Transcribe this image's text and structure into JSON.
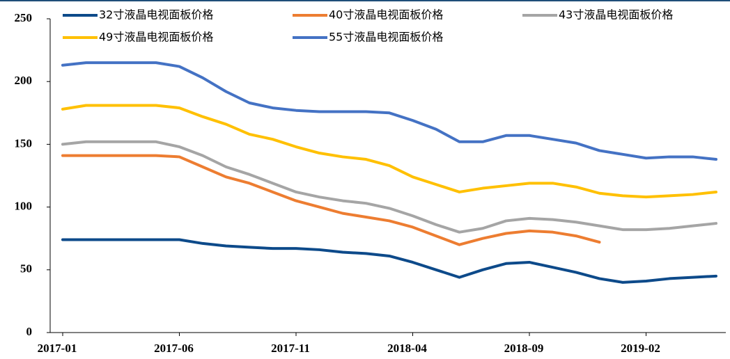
{
  "chart_data": {
    "type": "line",
    "categories": [
      "2017-01",
      null,
      null,
      null,
      null,
      "2017-06",
      null,
      null,
      null,
      null,
      "2017-11",
      null,
      null,
      null,
      null,
      "2018-04",
      null,
      null,
      null,
      null,
      "2018-09",
      null,
      null,
      null,
      null,
      "2019-02",
      null,
      null,
      null
    ],
    "series": [
      {
        "name": "32寸液晶电视面板价格",
        "color": "#0d4a8a",
        "values": [
          74,
          74,
          74,
          74,
          74,
          74,
          71,
          69,
          68,
          67,
          67,
          66,
          64,
          63,
          61,
          56,
          50,
          44,
          50,
          55,
          56,
          52,
          48,
          43,
          40,
          41,
          43,
          44,
          45
        ]
      },
      {
        "name": "40寸液晶电视面板价格",
        "color": "#ed7d31",
        "values": [
          141,
          141,
          141,
          141,
          141,
          140,
          132,
          124,
          119,
          112,
          105,
          100,
          95,
          92,
          89,
          84,
          77,
          70,
          75,
          79,
          81,
          80,
          77,
          72,
          null,
          null,
          null,
          null,
          null
        ]
      },
      {
        "name": "43寸液晶电视面板价格",
        "color": "#a5a5a5",
        "values": [
          150,
          152,
          152,
          152,
          152,
          148,
          141,
          132,
          126,
          119,
          112,
          108,
          105,
          103,
          99,
          93,
          86,
          80,
          83,
          89,
          91,
          90,
          88,
          85,
          82,
          82,
          83,
          85,
          87
        ]
      },
      {
        "name": "49寸液晶电视面板价格",
        "color": "#ffc000",
        "values": [
          178,
          181,
          181,
          181,
          181,
          179,
          172,
          166,
          158,
          154,
          148,
          143,
          140,
          138,
          133,
          124,
          118,
          112,
          115,
          117,
          119,
          119,
          116,
          111,
          109,
          108,
          109,
          110,
          112
        ]
      },
      {
        "name": "55寸液晶电视面板价格",
        "color": "#4472c4",
        "values": [
          213,
          215,
          215,
          215,
          215,
          212,
          203,
          192,
          183,
          179,
          177,
          176,
          176,
          176,
          175,
          169,
          162,
          152,
          152,
          157,
          157,
          154,
          151,
          145,
          142,
          139,
          140,
          140,
          138
        ]
      }
    ],
    "ylim": [
      0,
      250
    ],
    "yticks": [
      0,
      50,
      100,
      150,
      200,
      250
    ],
    "grid": false
  }
}
